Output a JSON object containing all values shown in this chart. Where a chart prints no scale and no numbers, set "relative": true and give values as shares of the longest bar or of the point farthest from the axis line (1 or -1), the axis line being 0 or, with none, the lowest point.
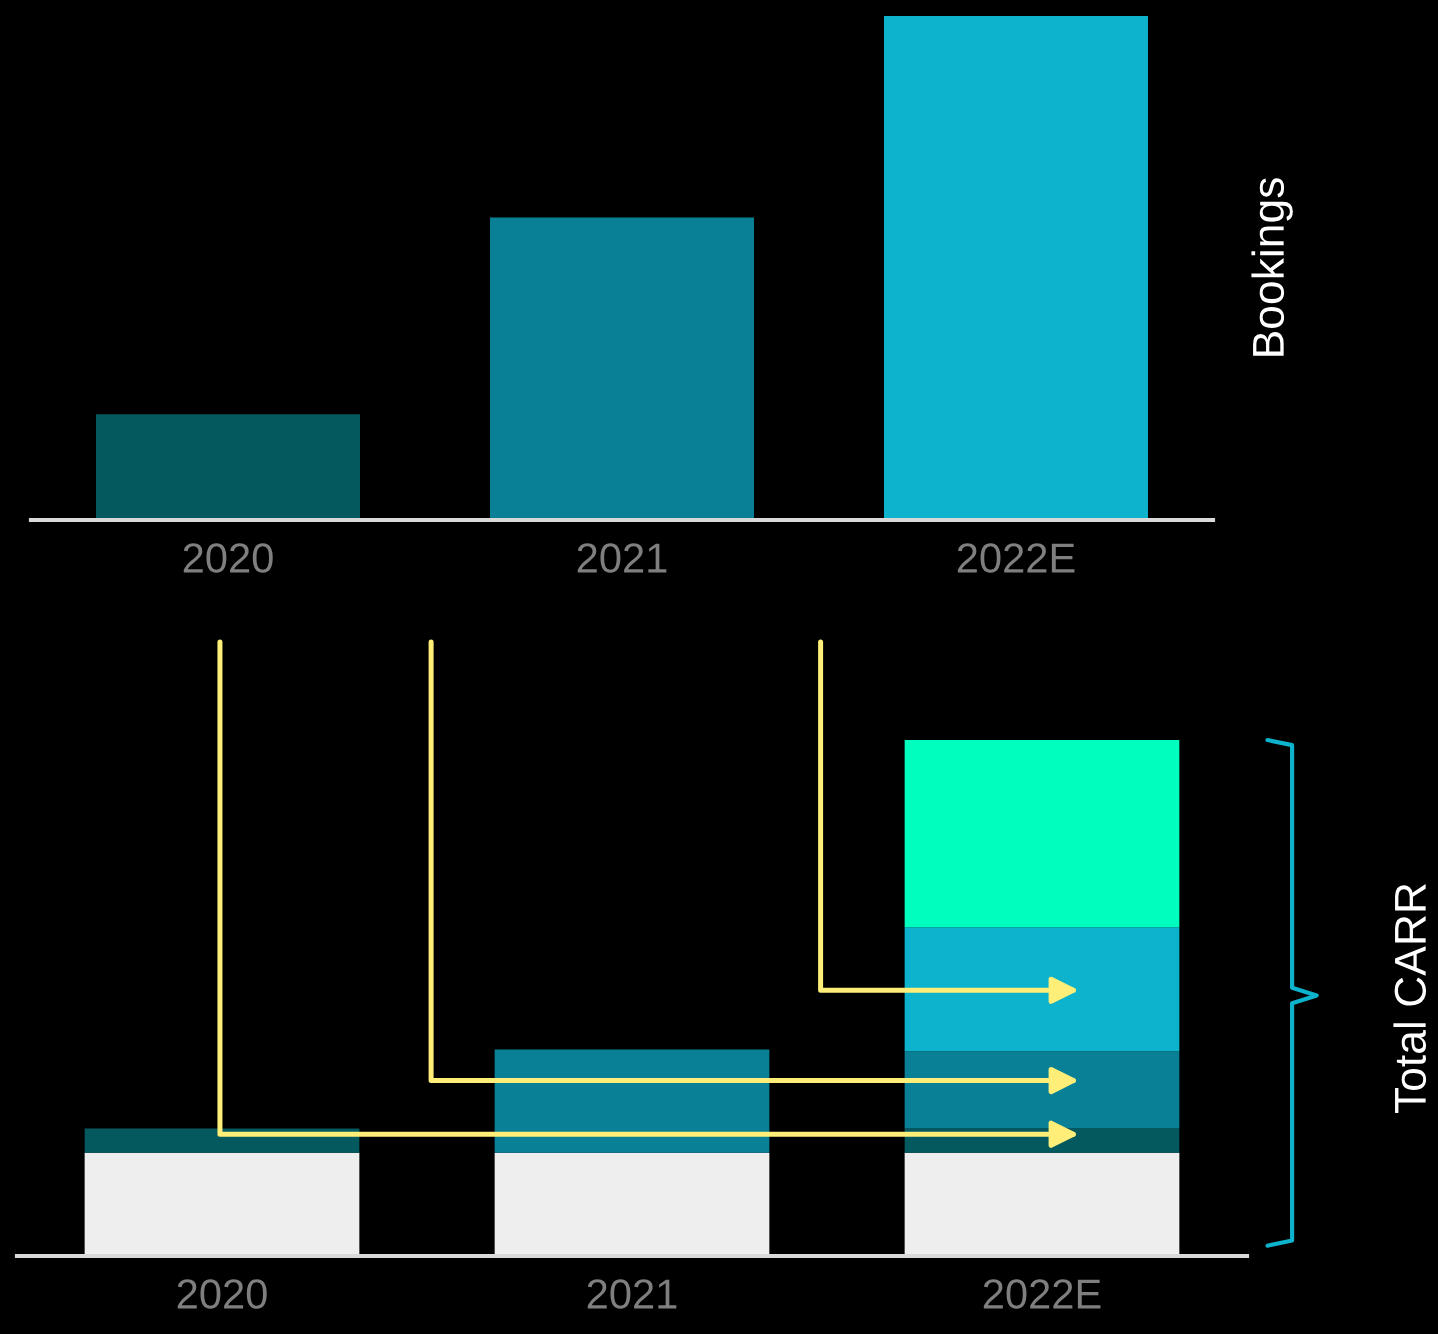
{
  "chart_data": [
    {
      "type": "bar",
      "ylabel": "Bookings",
      "relative": true,
      "tick_labels": "x",
      "grid": false,
      "legend": false,
      "categories": [
        "2020",
        "2021",
        "2022E"
      ],
      "values": [
        0.21,
        0.6,
        1
      ],
      "colors": [
        "#04595f",
        "#0a8096",
        "#0db3cc"
      ]
    },
    {
      "type": "bar",
      "ylabel": "Total CARR",
      "relative": true,
      "stacked": true,
      "tick_labels": "x",
      "grid": false,
      "legend": false,
      "categories": [
        "2020",
        "2021",
        "2022E"
      ],
      "series": [
        {
          "color": "#eeeeee",
          "values": [
            0.2,
            0.2,
            0.2
          ]
        },
        {
          "color": "#04595f",
          "values": [
            0.047,
            null,
            0.047
          ]
        },
        {
          "color": "#0a8096",
          "values": [
            null,
            0.2,
            0.15
          ]
        },
        {
          "color": "#0db3cc",
          "values": [
            null,
            null,
            0.24
          ]
        },
        {
          "color": "#00ffbf",
          "values": [
            null,
            null,
            0.363
          ]
        }
      ]
    }
  ]
}
